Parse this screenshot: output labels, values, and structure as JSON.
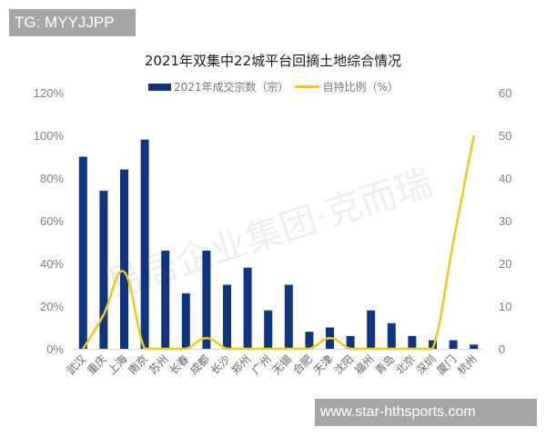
{
  "badges": {
    "top_left": "TG: MYYJJPP",
    "bottom_right": "www.star-hthsports.com"
  },
  "watermark": "易居企业集团·克而瑞",
  "colors": {
    "bar": "#0d3580",
    "line": "#f2c81e",
    "axis_text": "#808080"
  },
  "chart_data": {
    "type": "bar",
    "title": "2021年双集中22城平台回摘土地综合情况",
    "xlabel": "",
    "ylabel": "",
    "legend_position": "top",
    "grid": false,
    "categories": [
      "武汉",
      "重庆",
      "上海",
      "南京",
      "苏州",
      "长春",
      "成都",
      "长沙",
      "郑州",
      "广州",
      "无锡",
      "合肥",
      "天津",
      "沈阳",
      "福州",
      "青岛",
      "北京",
      "深圳",
      "厦门",
      "杭州"
    ],
    "series": [
      {
        "name": "2021年成交宗数（宗）",
        "type": "bar",
        "axis": "left",
        "values": [
          90,
          74,
          84,
          98,
          46,
          26,
          46,
          30,
          38,
          18,
          30,
          8,
          10,
          6,
          18,
          12,
          6,
          4,
          4,
          2
        ]
      },
      {
        "name": "自持比例（%）",
        "type": "line",
        "axis": "right",
        "values": [
          0,
          8,
          18,
          0,
          0,
          0,
          2.5,
          0,
          0,
          0,
          0,
          0,
          2.5,
          0,
          0,
          0,
          0,
          0,
          25,
          50
        ]
      }
    ],
    "left_axis": {
      "ticks": [
        "0%",
        "20%",
        "40%",
        "60%",
        "80%",
        "100%",
        "120%"
      ],
      "ylim": [
        0,
        120
      ]
    },
    "right_axis": {
      "ticks": [
        "0",
        "10",
        "20",
        "30",
        "40",
        "50",
        "60"
      ],
      "ylim": [
        0,
        60
      ]
    }
  }
}
